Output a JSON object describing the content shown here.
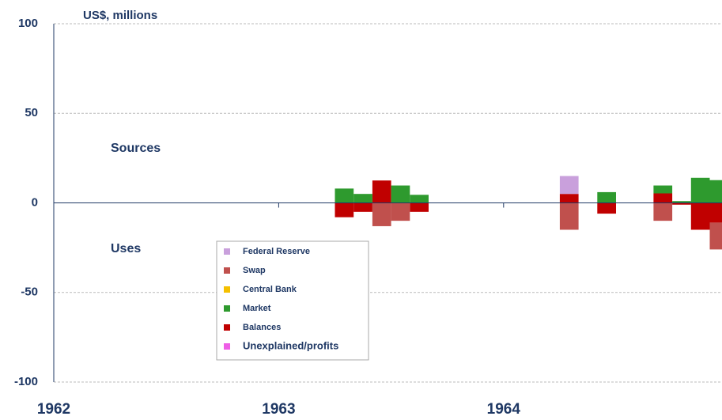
{
  "chart_data": {
    "type": "bar",
    "stacked": true,
    "unit_label": "US$, millions",
    "annotations": [
      "Sources",
      "Uses"
    ],
    "categories": [
      "1962",
      null,
      null,
      null,
      null,
      null,
      null,
      null,
      null,
      null,
      null,
      null,
      "1963",
      null,
      null,
      null,
      null,
      null,
      null,
      null,
      null,
      null,
      null,
      null,
      "1964",
      null,
      null,
      null,
      null,
      null,
      null,
      null,
      null,
      null,
      null,
      null
    ],
    "series": [
      {
        "name": "Federal Reserve",
        "color": "#c9a0dc",
        "values": [
          0,
          0,
          0,
          0,
          0,
          0,
          0,
          0,
          0,
          0,
          0,
          0,
          0,
          0,
          0,
          0,
          0,
          0,
          0,
          0,
          0,
          0,
          0,
          0,
          0,
          0,
          0,
          10,
          0,
          0,
          0,
          0,
          0,
          0,
          0,
          0
        ]
      },
      {
        "name": "Swap",
        "color": "#c0504d",
        "values": [
          0,
          0,
          0,
          0,
          0,
          0,
          0,
          0,
          0,
          0,
          0,
          0,
          0,
          0,
          0,
          0,
          0,
          -13,
          -10,
          0,
          0,
          0,
          0,
          0,
          0,
          0,
          0,
          -15,
          0,
          0,
          0,
          0,
          -10,
          0,
          0,
          -15
        ]
      },
      {
        "name": "Central Bank",
        "color": "#f5c000",
        "values": [
          0,
          0,
          0,
          0,
          0,
          0,
          0,
          0,
          0,
          0,
          0,
          0,
          0,
          0,
          0,
          0,
          0,
          0,
          0,
          0,
          0,
          0,
          0,
          0,
          0,
          0,
          0,
          0,
          0,
          0,
          0,
          0,
          0,
          0,
          0,
          0
        ]
      },
      {
        "name": "Market",
        "color": "#2e9a2e",
        "values": [
          0,
          0,
          0,
          0,
          0,
          0,
          0,
          0,
          0,
          0,
          0,
          0,
          0,
          0,
          0,
          8,
          5,
          0,
          9.7,
          4.5,
          0,
          0,
          0,
          0,
          0,
          0,
          0,
          0,
          0,
          6,
          0,
          0,
          4.4,
          1,
          14,
          12.7
        ]
      },
      {
        "name": "Balances",
        "color": "#c00000",
        "values": [
          0,
          0,
          0,
          0,
          0,
          0,
          0,
          0,
          0,
          0,
          0,
          0,
          0,
          0,
          0,
          -8,
          -5,
          12.5,
          0,
          -5,
          0,
          0,
          0,
          0,
          0,
          0,
          0,
          5,
          0,
          -6,
          0,
          0,
          5.3,
          -1,
          -15,
          -11
        ]
      },
      {
        "name": "Unexplained/profits",
        "color": "#ee5ee6",
        "values": [
          0,
          0,
          0,
          0,
          0,
          0,
          0,
          0,
          0,
          0,
          0,
          0,
          0,
          0,
          0,
          0,
          0,
          0,
          0,
          0,
          0,
          0,
          0,
          0,
          0,
          0,
          0,
          0,
          0,
          0,
          0,
          0,
          0,
          0,
          0,
          0
        ]
      }
    ],
    "ylim": [
      -100,
      100
    ],
    "yticks": [
      100,
      50,
      0,
      -50,
      -100
    ],
    "grid": true
  }
}
